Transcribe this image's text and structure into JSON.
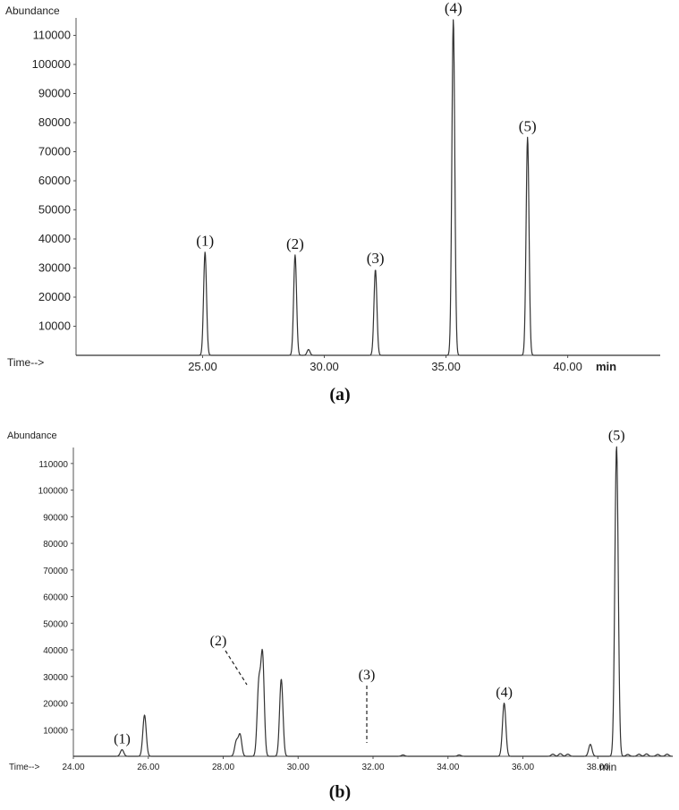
{
  "chart_data": [
    {
      "type": "line",
      "panel_label": "(a)",
      "ylabel": "Abundance",
      "xlabel_prefix": "Time-->",
      "xunit": "min",
      "xlim": [
        19.8,
        43.8
      ],
      "ylim": [
        0,
        116000
      ],
      "yticks": [
        10000,
        20000,
        30000,
        40000,
        50000,
        60000,
        70000,
        80000,
        90000,
        100000,
        110000
      ],
      "ytick_labels": [
        "10000",
        "20000",
        "30000",
        "40000",
        "50000",
        "60000",
        "70000",
        "80000",
        "90000",
        "100000",
        "110000"
      ],
      "xticks": [
        25,
        30,
        35,
        40
      ],
      "xtick_labels": [
        "25.00",
        "30.00",
        "35.00",
        "40.00"
      ],
      "series": [
        {
          "peaks": [
            {
              "x": 25.1,
              "y": 35500,
              "label": "(1)"
            },
            {
              "x": 28.8,
              "y": 34500,
              "label": "(2)"
            },
            {
              "x": 29.35,
              "y": 2000,
              "label": ""
            },
            {
              "x": 32.1,
              "y": 29500,
              "label": "(3)"
            },
            {
              "x": 35.3,
              "y": 115500,
              "label": "(4)"
            },
            {
              "x": 38.35,
              "y": 75000,
              "label": "(5)"
            }
          ]
        }
      ],
      "annotations": [
        {
          "text": "(1)",
          "x": 25.1,
          "y": 35500,
          "leader": "none"
        },
        {
          "text": "(2)",
          "x": 28.8,
          "y": 34500,
          "leader": "none"
        },
        {
          "text": "(3)",
          "x": 32.1,
          "y": 29500,
          "leader": "none"
        },
        {
          "text": "(4)",
          "x": 35.3,
          "y": 115500,
          "leader": "none"
        },
        {
          "text": "(5)",
          "x": 38.35,
          "y": 75000,
          "leader": "none"
        }
      ],
      "grid": false
    },
    {
      "type": "line",
      "panel_label": "(b)",
      "ylabel": "Abundance",
      "xlabel_prefix": "Time-->",
      "xunit": "min",
      "xlim": [
        24.0,
        40.0
      ],
      "ylim": [
        0,
        116000
      ],
      "yticks": [
        10000,
        20000,
        30000,
        40000,
        50000,
        60000,
        70000,
        80000,
        90000,
        100000,
        110000
      ],
      "ytick_labels": [
        "10000",
        "20000",
        "30000",
        "40000",
        "50000",
        "60000",
        "70000",
        "80000",
        "90000",
        "100000",
        "110000"
      ],
      "xticks": [
        24,
        26,
        28,
        30,
        32,
        34,
        36,
        38
      ],
      "xtick_labels": [
        "24.00",
        "26.00",
        "28.00",
        "30.00",
        "32.00",
        "34.00",
        "36.00",
        "38.00"
      ],
      "series": [
        {
          "peaks": [
            {
              "x": 25.3,
              "y": 2500,
              "label": "(1)"
            },
            {
              "x": 25.9,
              "y": 15500,
              "label": ""
            },
            {
              "x": 28.35,
              "y": 5500,
              "label": ""
            },
            {
              "x": 28.45,
              "y": 8000,
              "label": ""
            },
            {
              "x": 28.95,
              "y": 26500,
              "label": "(2)"
            },
            {
              "x": 29.05,
              "y": 37500,
              "label": ""
            },
            {
              "x": 29.55,
              "y": 29000,
              "label": ""
            },
            {
              "x": 32.3,
              "y": 0,
              "label": "(3)"
            },
            {
              "x": 32.8,
              "y": 500,
              "label": ""
            },
            {
              "x": 34.3,
              "y": 500,
              "label": ""
            },
            {
              "x": 35.5,
              "y": 20000,
              "label": "(4)"
            },
            {
              "x": 36.8,
              "y": 800,
              "label": ""
            },
            {
              "x": 37.0,
              "y": 1000,
              "label": ""
            },
            {
              "x": 37.2,
              "y": 800,
              "label": ""
            },
            {
              "x": 37.8,
              "y": 4500,
              "label": ""
            },
            {
              "x": 38.5,
              "y": 116500,
              "label": "(5)"
            },
            {
              "x": 38.8,
              "y": 700,
              "label": ""
            },
            {
              "x": 39.1,
              "y": 800,
              "label": ""
            },
            {
              "x": 39.3,
              "y": 900,
              "label": ""
            },
            {
              "x": 39.6,
              "y": 700,
              "label": ""
            },
            {
              "x": 39.85,
              "y": 800,
              "label": ""
            }
          ]
        }
      ],
      "annotations": [
        {
          "text": "(1)",
          "x": 25.3,
          "y": 2500,
          "leader": "none"
        },
        {
          "text": "(2)",
          "x": 28.95,
          "y": 26500,
          "leader": "dashed"
        },
        {
          "text": "(3)",
          "x": 32.3,
          "y": 0,
          "leader": "dashed"
        },
        {
          "text": "(4)",
          "x": 35.5,
          "y": 20000,
          "leader": "none"
        },
        {
          "text": "(5)",
          "x": 38.5,
          "y": 116500,
          "leader": "none"
        }
      ],
      "grid": false
    }
  ]
}
